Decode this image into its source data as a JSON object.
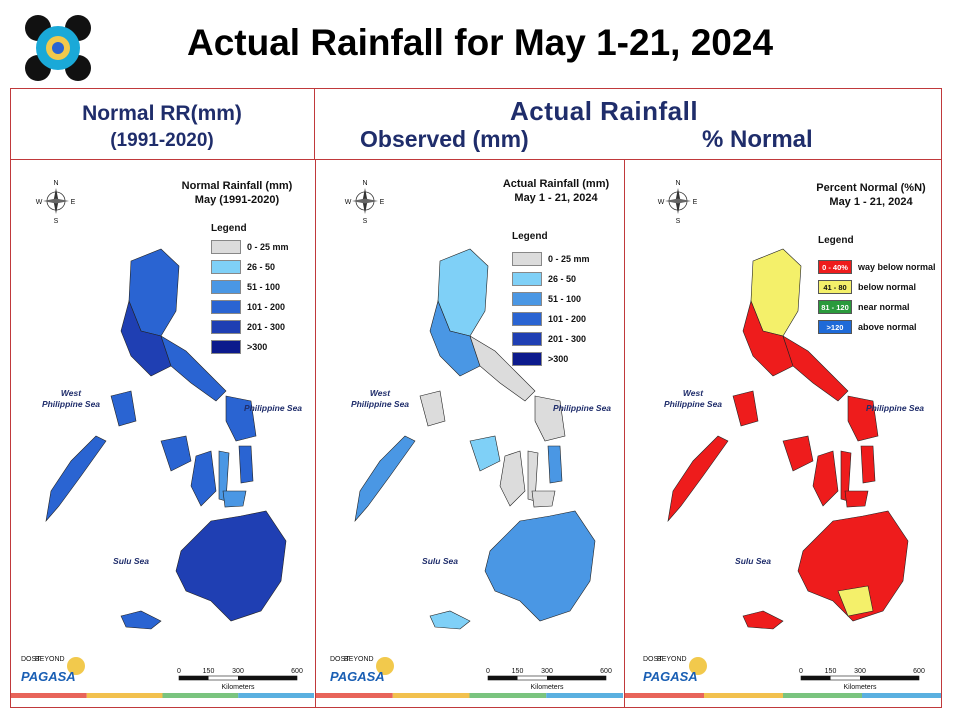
{
  "header": {
    "title": "Actual Rainfall for May 1-21, 2024"
  },
  "columns": {
    "left_l1": "Normal RR(mm)",
    "left_l2": "(1991-2020)",
    "right_title": "Actual Rainfall",
    "right_sub1": "Observed (mm)",
    "right_sub2": "% Normal"
  },
  "maps": [
    {
      "title_l1": "Normal Rainfall (mm)",
      "title_l2": "May (1991-2020)",
      "legend_title": "Legend",
      "legend": [
        {
          "label": "0 - 25 mm",
          "color": "#dcdcdc"
        },
        {
          "label": "26 - 50",
          "color": "#7fd0f7"
        },
        {
          "label": "51 - 100",
          "color": "#4a97e4"
        },
        {
          "label": "101 - 200",
          "color": "#2a64d2"
        },
        {
          "label": "201 - 300",
          "color": "#1f3fb3"
        },
        {
          "label": ">300",
          "color": "#0c1a8c"
        }
      ]
    },
    {
      "title_l1": "Actual Rainfall (mm)",
      "title_l2": "May 1 - 21, 2024",
      "legend_title": "Legend",
      "legend": [
        {
          "label": "0 - 25 mm",
          "color": "#dcdcdc"
        },
        {
          "label": "26 - 50",
          "color": "#7fd0f7"
        },
        {
          "label": "51 - 100",
          "color": "#4a97e4"
        },
        {
          "label": "101 - 200",
          "color": "#2a64d2"
        },
        {
          "label": "201 - 300",
          "color": "#1f3fb3"
        },
        {
          "label": ">300",
          "color": "#0c1a8c"
        }
      ]
    },
    {
      "title_l1": "Percent Normal (%N)",
      "title_l2": "May 1 - 21, 2024",
      "legend_title": "Legend",
      "legend": [
        {
          "swatch": "0 - 40%",
          "label": "way below normal",
          "color": "#ee1c1c"
        },
        {
          "swatch": "41 - 80",
          "label": "below normal",
          "color": "#f4f06a"
        },
        {
          "swatch": "81 - 120",
          "label": "near normal",
          "color": "#2a9a3c"
        },
        {
          "swatch": ">120",
          "label": "above normal",
          "color": "#1e6ad8"
        }
      ]
    }
  ],
  "labels": {
    "west_sea": "West\nPhilippine Sea",
    "ph_sea": "Philippine Sea",
    "sulu_sea": "Sulu Sea",
    "compass_n": "N",
    "compass_s": "S",
    "compass_e": "E",
    "compass_w": "W",
    "scale_0": "0",
    "scale_150": "150",
    "scale_300": "300",
    "scale_600": "600",
    "scale_unit": "Kilometers",
    "pagasa": "PAGASA",
    "dost": "DOST",
    "beyond": "BEYOND"
  },
  "colors": {
    "frame": "#c0393b",
    "heading": "#1f2d6b",
    "stripes": [
      "#e8645a",
      "#f2c14e",
      "#7ac47f",
      "#5ab0e0"
    ]
  }
}
